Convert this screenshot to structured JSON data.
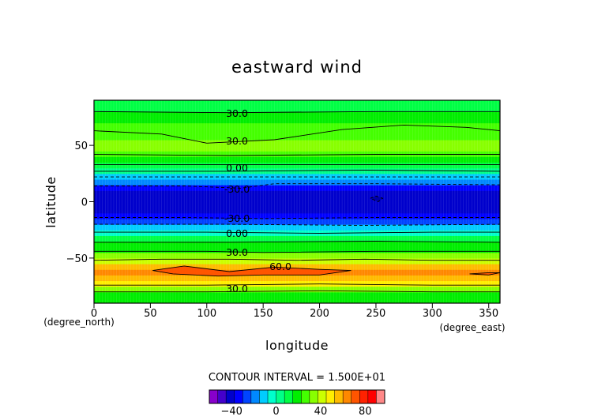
{
  "chart_data": {
    "type": "heatmap",
    "title": "eastward wind",
    "xlabel": "longitude",
    "ylabel": "latitude",
    "x_unit": "(degree_east)",
    "y_unit": "(degree_north)",
    "xlim": [
      0,
      360
    ],
    "ylim": [
      -90,
      90
    ],
    "x_ticks": [
      "0",
      "50",
      "100",
      "150",
      "200",
      "250",
      "300",
      "350"
    ],
    "y_ticks": [
      "50",
      "0",
      "−50"
    ],
    "contour_interval_text": "CONTOUR INTERVAL = 1.500E+01",
    "contour_labels": [
      "30.0",
      "30.0",
      "0.00",
      "-30.0",
      "-30.0",
      "0.00",
      "30.0",
      "60.0",
      "30.0"
    ],
    "colorbar": {
      "ticks": [
        "−40",
        "0",
        "40",
        "80"
      ],
      "colors": [
        "#8800cc",
        "#4400cc",
        "#0000cc",
        "#0000ff",
        "#0044ff",
        "#0088ff",
        "#00ccff",
        "#00ffcc",
        "#00ff88",
        "#00ff44",
        "#00ee00",
        "#44ff00",
        "#88ff00",
        "#ccff00",
        "#ffee00",
        "#ffbb00",
        "#ff8800",
        "#ff5500",
        "#ff2200",
        "#ff0000",
        "#ff8888"
      ]
    },
    "latitude_profile": {
      "latitude": [
        -90,
        -80,
        -75,
        -70,
        -65,
        -60,
        -55,
        -50,
        -45,
        -40,
        -35,
        -30,
        -25,
        -20,
        -15,
        -10,
        -5,
        0,
        5,
        10,
        15,
        20,
        25,
        30,
        35,
        40,
        45,
        50,
        55,
        60,
        65,
        70,
        75,
        80,
        85,
        90
      ],
      "wind": [
        10,
        30,
        42,
        52,
        58,
        62,
        50,
        35,
        25,
        18,
        12,
        3,
        -8,
        -18,
        -30,
        -38,
        -42,
        -43,
        -42,
        -38,
        -28,
        -15,
        -3,
        5,
        12,
        20,
        28,
        33,
        30,
        28,
        25,
        22,
        18,
        15,
        12,
        10
      ]
    },
    "contour_lines": [
      {
        "value": 60,
        "points": [
          [
            52,
            -61
          ],
          [
            80,
            -57
          ],
          [
            120,
            -62
          ],
          [
            160,
            -58
          ],
          [
            200,
            -60
          ],
          [
            228,
            -61
          ],
          [
            200,
            -65
          ],
          [
            150,
            -65
          ],
          [
            110,
            -66
          ],
          [
            70,
            -64
          ],
          [
            52,
            -61
          ]
        ]
      },
      {
        "value": 60,
        "points": [
          [
            333,
            -64
          ],
          [
            350,
            -63
          ],
          [
            360,
            -63
          ],
          [
            350,
            -65
          ],
          [
            333,
            -64
          ]
        ]
      },
      {
        "value": 45,
        "points": [
          [
            0,
            -52
          ],
          [
            60,
            -51
          ],
          [
            120,
            -51
          ],
          [
            180,
            -52
          ],
          [
            240,
            -51
          ],
          [
            300,
            -52
          ],
          [
            360,
            -52
          ]
        ]
      },
      {
        "value": 45,
        "points": [
          [
            0,
            -74
          ],
          [
            100,
            -74
          ],
          [
            200,
            -73
          ],
          [
            300,
            -74
          ],
          [
            360,
            -74
          ]
        ]
      },
      {
        "value": 30,
        "points": [
          [
            0,
            -44
          ],
          [
            100,
            -44
          ],
          [
            150,
            -45
          ],
          [
            250,
            -44
          ],
          [
            360,
            -44
          ]
        ]
      },
      {
        "value": 30,
        "points": [
          [
            0,
            -80
          ],
          [
            100,
            -80
          ],
          [
            200,
            -79
          ],
          [
            300,
            -80
          ],
          [
            360,
            -80
          ]
        ]
      },
      {
        "value": 15,
        "points": [
          [
            0,
            -36
          ],
          [
            120,
            -36
          ],
          [
            250,
            -35
          ],
          [
            360,
            -36
          ]
        ]
      },
      {
        "value": 0,
        "points": [
          [
            0,
            -27
          ],
          [
            100,
            -27
          ],
          [
            200,
            -28
          ],
          [
            300,
            -27
          ],
          [
            360,
            -27
          ]
        ]
      },
      {
        "value": -15,
        "points": [
          [
            0,
            -20
          ],
          [
            120,
            -20
          ],
          [
            240,
            -21
          ],
          [
            360,
            -20
          ]
        ]
      },
      {
        "value": -30,
        "points": [
          [
            0,
            -14
          ],
          [
            80,
            -14
          ],
          [
            150,
            -15
          ],
          [
            250,
            -14
          ],
          [
            360,
            -14
          ]
        ]
      },
      {
        "value": -30,
        "points": [
          [
            0,
            14
          ],
          [
            80,
            14
          ],
          [
            130,
            12
          ],
          [
            160,
            16
          ],
          [
            250,
            16
          ],
          [
            360,
            15
          ]
        ]
      },
      {
        "value": -45,
        "points": [
          [
            245,
            3
          ],
          [
            250,
            5
          ],
          [
            256,
            3
          ],
          [
            252,
            0
          ],
          [
            245,
            3
          ]
        ]
      },
      {
        "value": -15,
        "points": [
          [
            0,
            22
          ],
          [
            120,
            22
          ],
          [
            250,
            22
          ],
          [
            360,
            22
          ]
        ]
      },
      {
        "value": 0,
        "points": [
          [
            0,
            27
          ],
          [
            120,
            27
          ],
          [
            240,
            28
          ],
          [
            360,
            27
          ]
        ]
      },
      {
        "value": 15,
        "points": [
          [
            0,
            33
          ],
          [
            150,
            33
          ],
          [
            360,
            33
          ]
        ]
      },
      {
        "value": 30,
        "points": [
          [
            0,
            42
          ],
          [
            120,
            41
          ],
          [
            250,
            42
          ],
          [
            360,
            42
          ]
        ]
      },
      {
        "value": 30,
        "points": [
          [
            0,
            63
          ],
          [
            60,
            60
          ],
          [
            100,
            52
          ],
          [
            160,
            55
          ],
          [
            220,
            64
          ],
          [
            275,
            68
          ],
          [
            330,
            66
          ],
          [
            360,
            63
          ]
        ]
      },
      {
        "value": 30,
        "points": [
          [
            0,
            80
          ],
          [
            120,
            79
          ],
          [
            250,
            80
          ],
          [
            360,
            80
          ]
        ]
      }
    ]
  }
}
